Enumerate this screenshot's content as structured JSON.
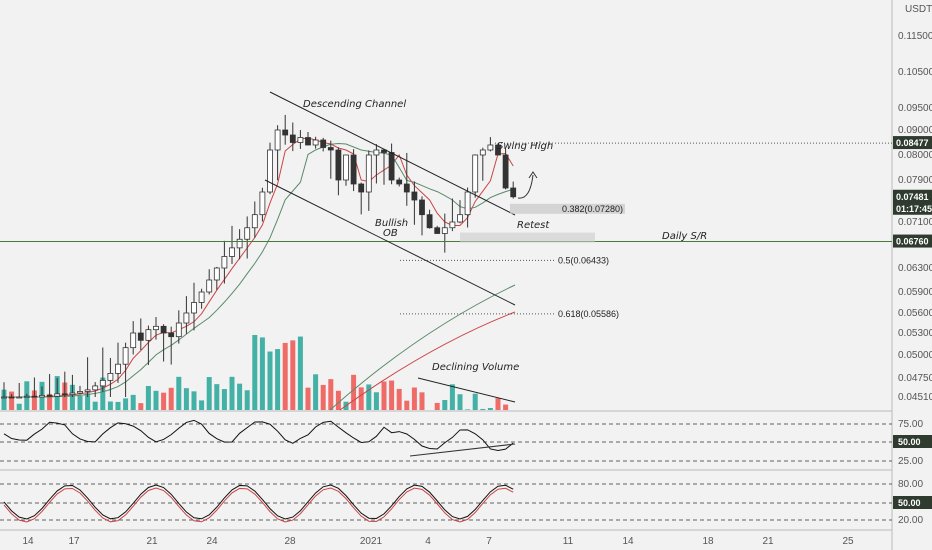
{
  "chart_data": [
    {
      "type": "candlestick",
      "panel": "price",
      "currency_label": "USDT",
      "y_ticks": [
        0.115,
        0.105,
        0.095,
        0.09,
        0.08,
        0.079,
        0.074,
        0.071,
        0.063,
        0.059,
        0.056,
        0.053,
        0.05,
        0.0475,
        0.0451
      ],
      "y_tick_labels": [
        "0.11500",
        "0.10500",
        "0.09500",
        "0.09000",
        "0.08000",
        "0.07900",
        "0.07400",
        "0.07100",
        "0.06300",
        "0.05900",
        "0.05600",
        "0.05300",
        "0.05000",
        "0.04750",
        "0.04510"
      ],
      "x_ticks": [
        14,
        17,
        21,
        24,
        28,
        "2021",
        4,
        7,
        11,
        14,
        18,
        21,
        25
      ],
      "x_tick_labels": [
        "14",
        "17",
        "21",
        "24",
        "28",
        "2021",
        "4",
        "7",
        "11",
        "14",
        "18",
        "21",
        "25"
      ],
      "price_tags": [
        {
          "label": "0.08477",
          "value": 0.08477,
          "color": "#2e3b2e"
        },
        {
          "label": "0.07481",
          "value": 0.07481,
          "color": "#2e3b2e"
        },
        {
          "label": "01:17:45",
          "value": 0.073,
          "color": "#2e3b2e"
        },
        {
          "label": "0.06760",
          "value": 0.0676,
          "color": "#2e3b2e"
        }
      ],
      "annotations": [
        "Descending Channel",
        "Swing High",
        "Retest",
        "Bullish",
        "OB",
        "Daily S/R",
        "Declining Volume"
      ],
      "fib_levels": [
        {
          "label": "0.382(0.07280)",
          "value": 0.0728
        },
        {
          "label": "0.5(0.06433)",
          "value": 0.06433
        },
        {
          "label": "0.618(0.05586)",
          "value": 0.05586
        }
      ],
      "series": [
        {
          "name": "price",
          "y": [
            0.045,
            0.0449,
            0.0451,
            0.0452,
            0.045,
            0.0453,
            0.0452,
            0.0455,
            0.0454,
            0.0456,
            0.0458,
            0.046,
            0.0465,
            0.0472,
            0.048,
            0.049,
            0.051,
            0.053,
            0.052,
            0.0535,
            0.054,
            0.053,
            0.0525,
            0.0545,
            0.056,
            0.0575,
            0.059,
            0.061,
            0.063,
            0.065,
            0.0665,
            0.068,
            0.07,
            0.072,
            0.076,
            0.082,
            0.09,
            0.088,
            0.085,
            0.087,
            0.084,
            0.086,
            0.083,
            0.082,
            0.079,
            0.08,
            0.078,
            0.076,
            0.08,
            0.082,
            0.081,
            0.079,
            0.078,
            0.076,
            0.074,
            0.072,
            0.07,
            0.069,
            0.07,
            0.071,
            0.072,
            0.076,
            0.08,
            0.082,
            0.084,
            0.08,
            0.077,
            0.0748
          ]
        }
      ]
    },
    {
      "type": "bar",
      "panel": "volume",
      "annotation": "Declining Volume"
    },
    {
      "type": "line",
      "panel": "rsi",
      "y_ticks": [
        75.0,
        50.0,
        25.0
      ],
      "y_tick_labels": [
        "75.00",
        "50.00",
        "25.00"
      ],
      "current_label": "50.00"
    },
    {
      "type": "line",
      "panel": "stoch_rsi",
      "y_ticks": [
        80.0,
        50.0,
        20.0
      ],
      "y_tick_labels": [
        "80.00",
        "50.00",
        "20.00"
      ],
      "current_label": "50.00"
    }
  ],
  "colors": {
    "up": "#26a69a",
    "down": "#ef5350",
    "candle": "#333333",
    "tag": "#2e3b2e",
    "support": "#4a7a3a",
    "ma_green": "#5a8a6a",
    "ma_red": "#cc4444"
  }
}
